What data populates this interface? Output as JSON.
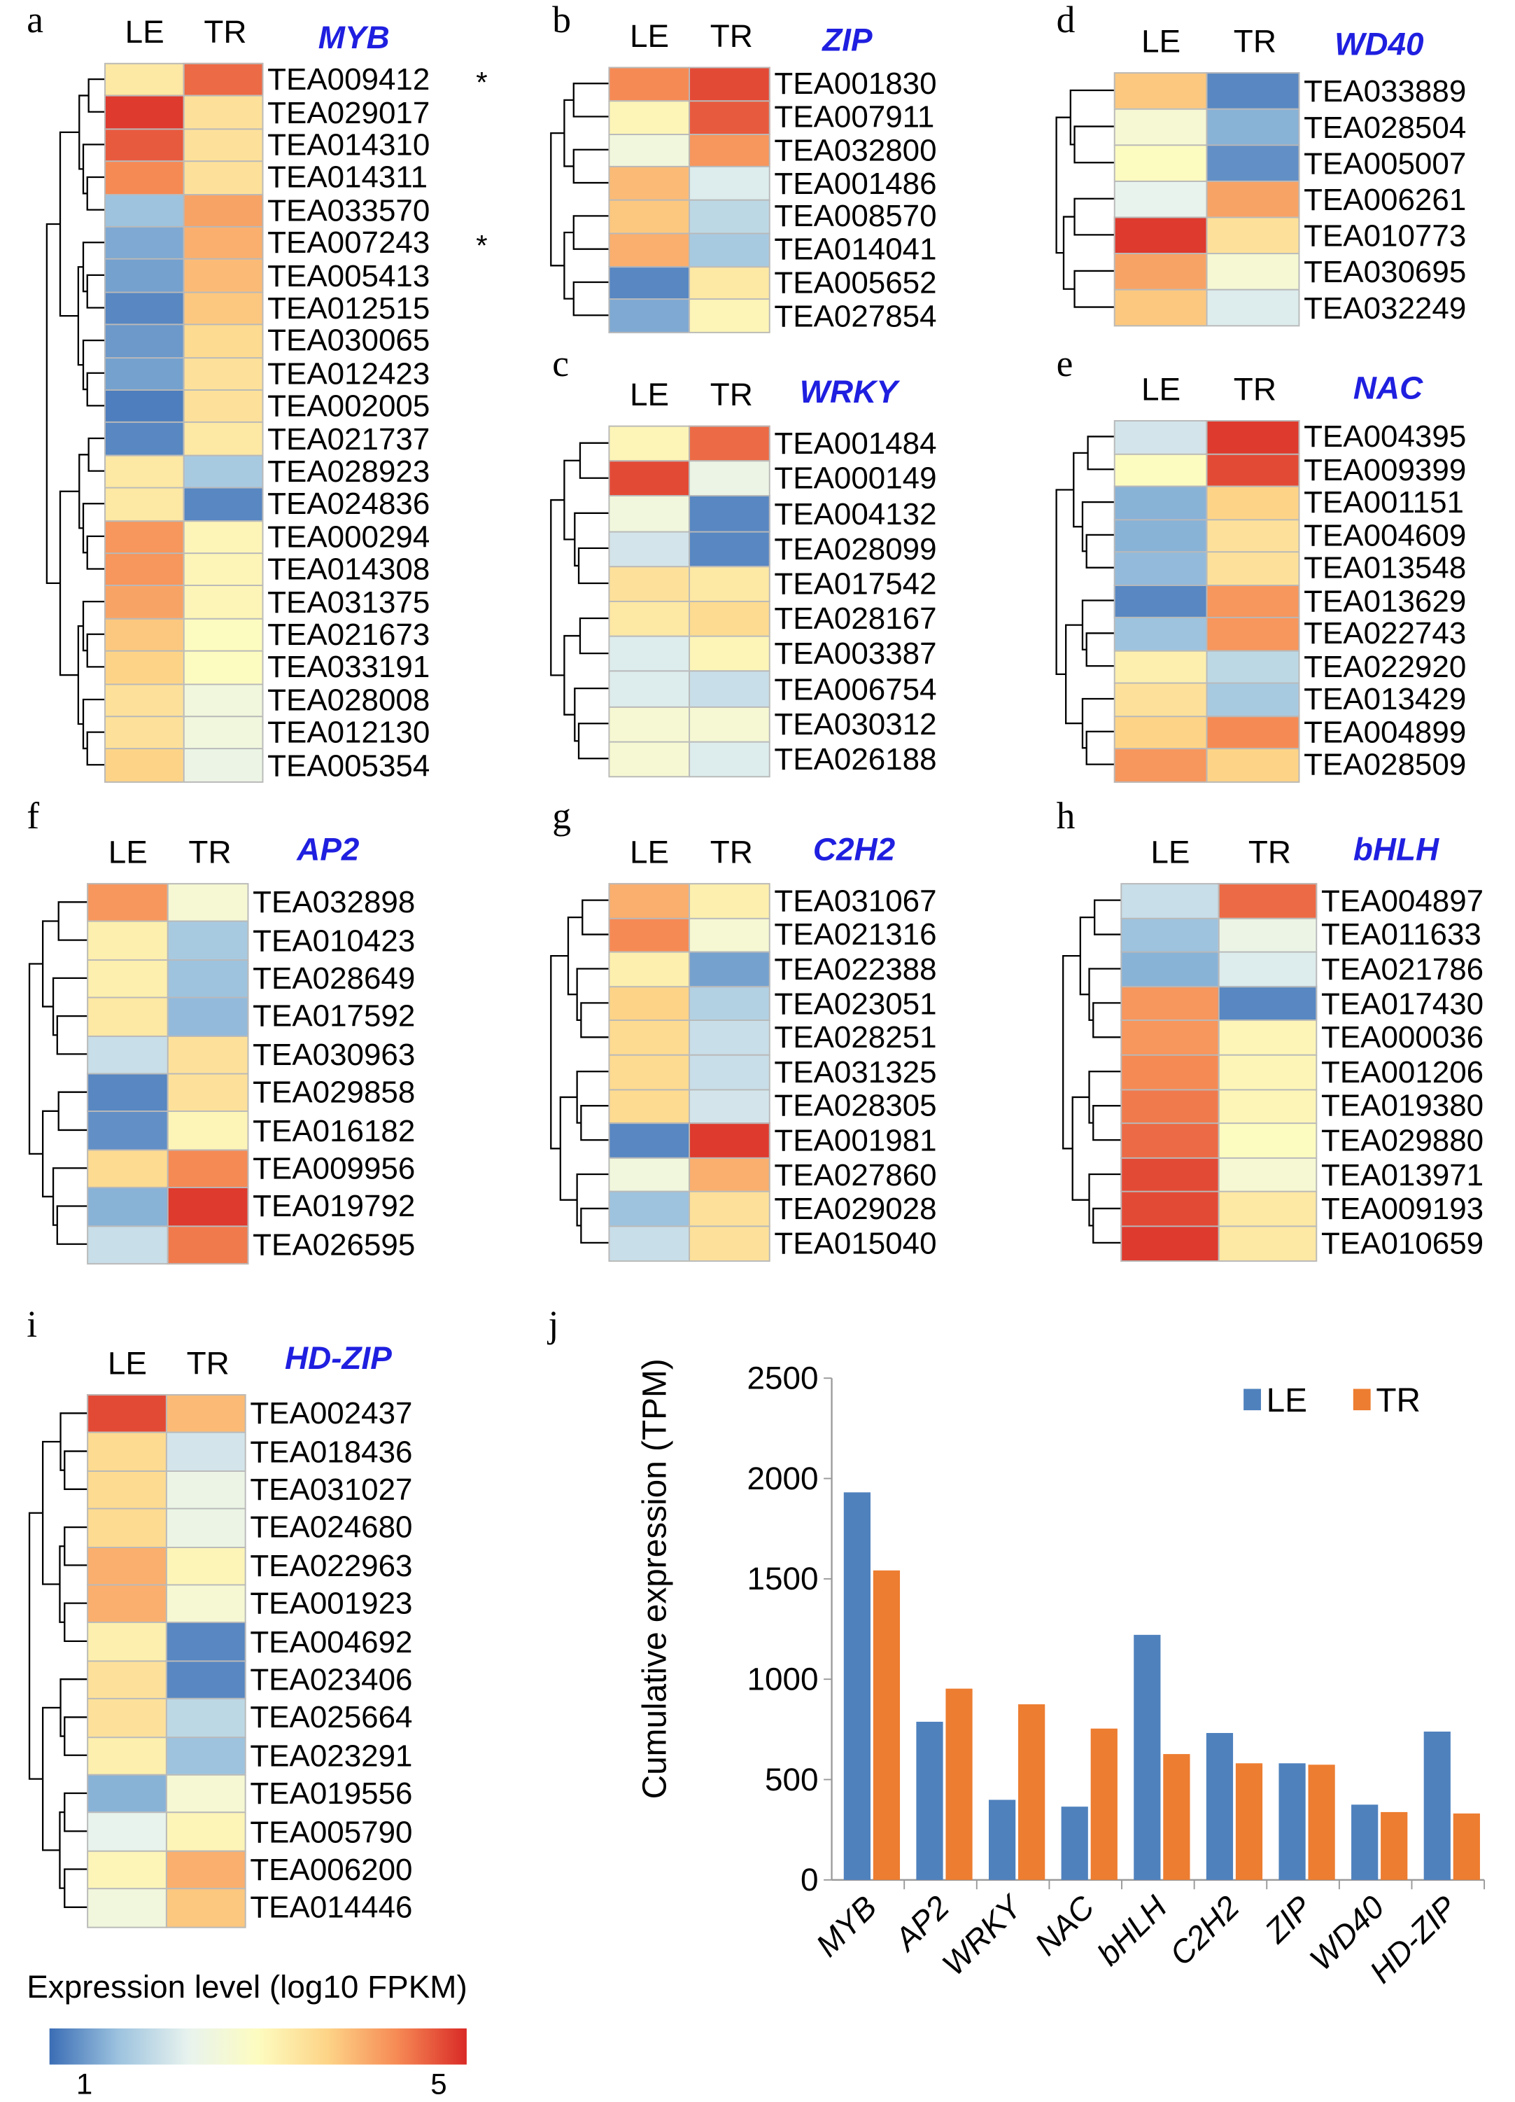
{
  "panels": [
    {
      "label": "a",
      "title": "MYB",
      "cols": [
        "LE",
        "TR"
      ],
      "rows": [
        [
          "TEA009412",
          3.5,
          4.6,
          "*"
        ],
        [
          "TEA029017",
          4.9,
          3.6
        ],
        [
          "TEA014310",
          4.7,
          3.6
        ],
        [
          "TEA014311",
          4.4,
          3.6
        ],
        [
          "TEA033570",
          2.0,
          4.2
        ],
        [
          "TEA007243",
          1.7,
          4.1,
          "*"
        ],
        [
          "TEA005413",
          1.6,
          4.0
        ],
        [
          "TEA012515",
          1.3,
          3.9
        ],
        [
          "TEA030065",
          1.5,
          3.7
        ],
        [
          "TEA012423",
          1.6,
          3.6
        ],
        [
          "TEA002005",
          1.2,
          3.6
        ],
        [
          "TEA021737",
          1.3,
          3.5
        ],
        [
          "TEA028923",
          3.5,
          2.1
        ],
        [
          "TEA024836",
          3.5,
          1.3
        ],
        [
          "TEA000294",
          4.3,
          3.3
        ],
        [
          "TEA014308",
          4.3,
          3.3
        ],
        [
          "TEA031375",
          4.2,
          3.3
        ],
        [
          "TEA021673",
          3.9,
          3.2
        ],
        [
          "TEA033191",
          3.8,
          3.2
        ],
        [
          "TEA028008",
          3.6,
          2.9
        ],
        [
          "TEA012130",
          3.6,
          2.9
        ],
        [
          "TEA005354",
          3.8,
          2.8
        ]
      ]
    },
    {
      "label": "b",
      "title": "ZIP",
      "cols": [
        "LE",
        "TR"
      ],
      "rows": [
        [
          "TEA001830",
          4.4,
          4.8
        ],
        [
          "TEA007911",
          3.3,
          4.7
        ],
        [
          "TEA032800",
          2.9,
          4.3
        ],
        [
          "TEA001486",
          4.0,
          2.6
        ],
        [
          "TEA008570",
          3.9,
          2.3
        ],
        [
          "TEA014041",
          4.1,
          2.1
        ],
        [
          "TEA005652",
          1.3,
          3.5
        ],
        [
          "TEA027854",
          1.7,
          3.3
        ]
      ]
    },
    {
      "label": "c",
      "title": "WRKY",
      "cols": [
        "LE",
        "TR"
      ],
      "rows": [
        [
          "TEA001484",
          3.3,
          4.6
        ],
        [
          "TEA000149",
          4.8,
          2.8
        ],
        [
          "TEA004132",
          2.9,
          1.3
        ],
        [
          "TEA028099",
          2.5,
          1.3
        ],
        [
          "TEA017542",
          3.6,
          3.5
        ],
        [
          "TEA028167",
          3.5,
          3.7
        ],
        [
          "TEA003387",
          2.6,
          3.3
        ],
        [
          "TEA006754",
          2.6,
          2.4
        ],
        [
          "TEA030312",
          3.0,
          3.0
        ],
        [
          "TEA026188",
          3.0,
          2.6
        ]
      ]
    },
    {
      "label": "d",
      "title": "WD40",
      "cols": [
        "LE",
        "TR"
      ],
      "rows": [
        [
          "TEA033889",
          3.9,
          1.3
        ],
        [
          "TEA028504",
          3.0,
          1.8
        ],
        [
          "TEA005007",
          3.2,
          1.4
        ],
        [
          "TEA006261",
          2.7,
          4.2
        ],
        [
          "TEA010773",
          4.9,
          3.6
        ],
        [
          "TEA030695",
          4.2,
          3.0
        ],
        [
          "TEA032249",
          3.9,
          2.6
        ]
      ]
    },
    {
      "label": "e",
      "title": "NAC",
      "cols": [
        "LE",
        "TR"
      ],
      "rows": [
        [
          "TEA004395",
          2.5,
          4.9
        ],
        [
          "TEA009399",
          3.2,
          4.8
        ],
        [
          "TEA001151",
          1.8,
          3.8
        ],
        [
          "TEA004609",
          1.8,
          3.6
        ],
        [
          "TEA013548",
          1.9,
          3.6
        ],
        [
          "TEA013629",
          1.3,
          4.3
        ],
        [
          "TEA022743",
          2.0,
          4.3
        ],
        [
          "TEA022920",
          3.4,
          2.3
        ],
        [
          "TEA013429",
          3.6,
          2.1
        ],
        [
          "TEA004899",
          3.8,
          4.4
        ],
        [
          "TEA028509",
          4.3,
          3.8
        ]
      ]
    },
    {
      "label": "f",
      "title": "AP2",
      "cols": [
        "LE",
        "TR"
      ],
      "rows": [
        [
          "TEA032898",
          4.3,
          3.0
        ],
        [
          "TEA010423",
          3.4,
          2.1
        ],
        [
          "TEA028649",
          3.4,
          2.0
        ],
        [
          "TEA017592",
          3.5,
          1.9
        ],
        [
          "TEA030963",
          2.4,
          3.6
        ],
        [
          "TEA029858",
          1.3,
          3.6
        ],
        [
          "TEA016182",
          1.4,
          3.3
        ],
        [
          "TEA009956",
          3.7,
          4.4
        ],
        [
          "TEA019792",
          1.8,
          4.9
        ],
        [
          "TEA026595",
          2.4,
          4.5
        ]
      ]
    },
    {
      "label": "g",
      "title": "C2H2",
      "cols": [
        "LE",
        "TR"
      ],
      "rows": [
        [
          "TEA031067",
          4.1,
          3.4
        ],
        [
          "TEA021316",
          4.4,
          3.0
        ],
        [
          "TEA022388",
          3.4,
          1.6
        ],
        [
          "TEA023051",
          3.8,
          2.2
        ],
        [
          "TEA028251",
          3.7,
          2.4
        ],
        [
          "TEA031325",
          3.7,
          2.4
        ],
        [
          "TEA028305",
          3.7,
          2.5
        ],
        [
          "TEA001981",
          1.3,
          4.9
        ],
        [
          "TEA027860",
          2.9,
          4.1
        ],
        [
          "TEA029028",
          2.0,
          3.6
        ],
        [
          "TEA015040",
          2.4,
          3.6
        ]
      ]
    },
    {
      "label": "h",
      "title": "bHLH",
      "cols": [
        "LE",
        "TR"
      ],
      "rows": [
        [
          "TEA004897",
          2.4,
          4.6
        ],
        [
          "TEA011633",
          2.0,
          2.8
        ],
        [
          "TEA021786",
          1.8,
          2.6
        ],
        [
          "TEA017430",
          4.3,
          1.3
        ],
        [
          "TEA000036",
          4.3,
          3.3
        ],
        [
          "TEA001206",
          4.4,
          3.3
        ],
        [
          "TEA019380",
          4.5,
          3.3
        ],
        [
          "TEA029880",
          4.6,
          3.2
        ],
        [
          "TEA013971",
          4.8,
          3.0
        ],
        [
          "TEA009193",
          4.8,
          3.5
        ],
        [
          "TEA010659",
          4.9,
          3.5
        ]
      ]
    },
    {
      "label": "i",
      "title": "HD-ZIP",
      "cols": [
        "LE",
        "TR"
      ],
      "rows": [
        [
          "TEA002437",
          4.8,
          4.0
        ],
        [
          "TEA018436",
          3.7,
          2.5
        ],
        [
          "TEA031027",
          3.7,
          2.8
        ],
        [
          "TEA024680",
          3.7,
          2.8
        ],
        [
          "TEA022963",
          4.1,
          3.3
        ],
        [
          "TEA001923",
          4.1,
          3.0
        ],
        [
          "TEA004692",
          3.4,
          1.3
        ],
        [
          "TEA023406",
          3.6,
          1.3
        ],
        [
          "TEA025664",
          3.6,
          2.3
        ],
        [
          "TEA023291",
          3.4,
          2.0
        ],
        [
          "TEA019556",
          1.8,
          3.0
        ],
        [
          "TEA005790",
          2.7,
          3.3
        ],
        [
          "TEA006200",
          3.3,
          4.1
        ],
        [
          "TEA014446",
          2.9,
          3.9
        ]
      ]
    }
  ],
  "colorbar": {
    "title": "Expression level (log10 FPKM)",
    "min_label": "1",
    "max_label": "5",
    "min": 1,
    "max": 5,
    "colors": [
      "#3a6db5",
      "#9dc3df",
      "#e8f3ee",
      "#fdfcc0",
      "#fdd487",
      "#f68a55",
      "#d92a26"
    ]
  },
  "chart_data": {
    "panel_label": "j",
    "type": "bar",
    "categories": [
      "MYB",
      "AP2",
      "WRKY",
      "NAC",
      "bHLH",
      "C2H2",
      "ZIP",
      "WD40",
      "HD-ZIP"
    ],
    "series": [
      {
        "name": "LE",
        "color": "#4f81bd",
        "values": [
          1931,
          788,
          399,
          365,
          1221,
          732,
          581,
          375,
          739
        ]
      },
      {
        "name": "TR",
        "color": "#ed7d31",
        "values": [
          1542,
          953,
          875,
          754,
          627,
          581,
          574,
          338,
          331
        ]
      }
    ],
    "ylabel": "Cumulative expression (TPM)",
    "ylim": [
      0,
      2500
    ],
    "yticks": [
      0,
      500,
      1000,
      1500,
      2000,
      2500
    ],
    "legend": "top-right",
    "grid": false
  }
}
